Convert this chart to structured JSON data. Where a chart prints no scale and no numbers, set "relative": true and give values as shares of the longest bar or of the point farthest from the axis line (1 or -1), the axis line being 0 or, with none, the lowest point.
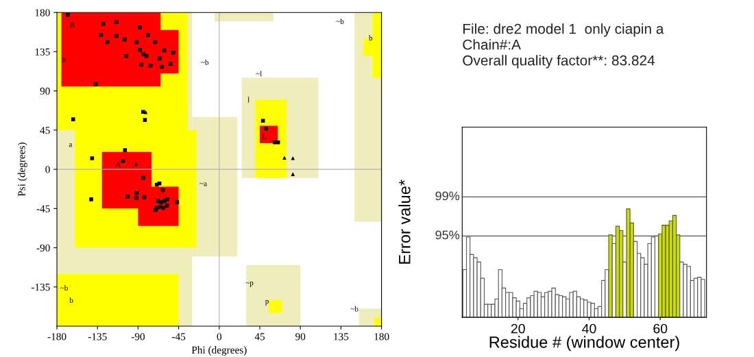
{
  "chart_data": [
    {
      "type": "scatter",
      "xlabel": "Phi (degrees)",
      "ylabel": "Psi (degrees)",
      "xlim": [
        -180,
        180
      ],
      "ylim": [
        -180,
        180
      ],
      "xticks": [
        -180,
        -135,
        -90,
        -45,
        0,
        45,
        90,
        135,
        180
      ],
      "yticks": [
        -135,
        -90,
        -45,
        0,
        45,
        90,
        135,
        180
      ],
      "grid": false,
      "legend": false,
      "ref_lines": [
        {
          "axis": "x",
          "value": 0,
          "color": "#b0b0b0"
        },
        {
          "axis": "y",
          "value": 0,
          "color": "#b0b0b0"
        }
      ],
      "series": [
        {
          "color": "#000000",
          "marker": "square",
          "x": [
            -168,
            -128.5,
            -114,
            -88,
            -131,
            -114,
            -124,
            -105,
            -91.5,
            -79,
            -71,
            -88,
            -84,
            -80.6,
            -103,
            -61,
            -51,
            -66,
            -86.4,
            -76,
            -63.5,
            -54,
            -137,
            -84.4,
            -82.4,
            -162,
            -141,
            -104.5,
            -106.6,
            48.5,
            52,
            61.5,
            65.3,
            -84,
            -142,
            -101.5,
            -91.5,
            -92,
            -83,
            -69.3,
            -66.3,
            -62.5,
            -57.5,
            -46.6,
            -68,
            -64.3,
            -60.5,
            -69.3,
            -65.5,
            -61.7,
            -58,
            -70.6
          ],
          "values": [
            177,
            167,
            169,
            163,
            154,
            153,
            146,
            149,
            146,
            154,
            146,
            137,
            132,
            130,
            130,
            136.5,
            134,
            127,
            120,
            119,
            117.6,
            121,
            97.7,
            66,
            56.6,
            57.4,
            12.6,
            22,
            9.4,
            55.8,
            46.6,
            31,
            31,
            -9.7,
            -34.4,
            -31.2,
            -27.3,
            -33,
            -32,
            -17.6,
            -16.3,
            -23.9,
            -34.4,
            -37.8,
            -36.4,
            -37.8,
            -36.4,
            -44.3,
            -43,
            -44.3,
            -41.7,
            -46.6
          ]
        },
        {
          "color": "#000000",
          "marker": "triangle",
          "x": [
            -81.5,
            -92,
            72.3,
            81.7,
            81.7
          ],
          "values": [
            65.5,
            6,
            13.3,
            12.8,
            -5.5
          ]
        }
      ],
      "annotations": [
        "B",
        "b",
        "A",
        "a",
        "~b",
        "~b",
        "b",
        "~l",
        "l",
        "L",
        "~a",
        "~b",
        "b",
        "~p",
        "p",
        "~b"
      ]
    },
    {
      "type": "bar",
      "xlabel": "Residue # (window center)",
      "ylabel": "Error value*",
      "relative": true,
      "xlim": [
        4.3,
        73
      ],
      "xticks": [
        20,
        40,
        60
      ],
      "x": [
        5,
        6,
        7,
        8,
        9,
        10,
        11,
        12,
        13,
        14,
        15,
        16,
        17,
        18,
        19,
        20,
        21,
        22,
        23,
        24,
        25,
        26,
        27,
        28,
        29,
        30,
        31,
        32,
        33,
        34,
        35,
        36,
        37,
        38,
        39,
        40,
        41,
        42,
        43,
        44,
        45,
        46,
        47,
        48,
        49,
        50,
        51,
        52,
        53,
        54,
        55,
        56,
        57,
        58,
        59,
        60,
        61,
        62,
        63,
        64,
        65,
        66,
        67,
        68,
        69,
        70,
        71,
        72
      ],
      "values": [
        0.44,
        0.74,
        0.58,
        0.55,
        0.51,
        0.36,
        0.12,
        0.12,
        0.12,
        0.17,
        0.44,
        0.27,
        0.23,
        0.23,
        0.18,
        0.15,
        0.08,
        0.13,
        0.18,
        0.2,
        0.24,
        0.23,
        0.19,
        0.23,
        0.24,
        0.27,
        0.21,
        0.2,
        0.19,
        0.17,
        0.23,
        0.24,
        0.19,
        0.17,
        0.16,
        0.14,
        0.13,
        0.08,
        0.1,
        0.34,
        0.44,
        0.76,
        0.68,
        0.84,
        0.8,
        0.51,
        1.0,
        0.87,
        0.7,
        0.59,
        0.55,
        0.49,
        0.68,
        0.74,
        0.75,
        0.77,
        0.85,
        0.85,
        0.89,
        0.94,
        0.76,
        0.51,
        0.49,
        0.47,
        0.34,
        0.36,
        0.37,
        0.35
      ],
      "colors": [
        "#ffffff",
        "#ffffff",
        "#ffffff",
        "#ffffff",
        "#ffffff",
        "#ffffff",
        "#ffffff",
        "#ffffff",
        "#ffffff",
        "#ffffff",
        "#ffffff",
        "#ffffff",
        "#ffffff",
        "#ffffff",
        "#ffffff",
        "#ffffff",
        "#ffffff",
        "#ffffff",
        "#ffffff",
        "#ffffff",
        "#ffffff",
        "#ffffff",
        "#ffffff",
        "#ffffff",
        "#ffffff",
        "#ffffff",
        "#ffffff",
        "#ffffff",
        "#ffffff",
        "#ffffff",
        "#ffffff",
        "#ffffff",
        "#ffffff",
        "#ffffff",
        "#ffffff",
        "#ffffff",
        "#ffffff",
        "#ffffff",
        "#ffffff",
        "#ffffff",
        "#ffffff",
        "#ccdd00",
        "#ffffff",
        "#ccdd00",
        "#ccdd00",
        "#ffffff",
        "#ccdd00",
        "#ccdd00",
        "#ffffff",
        "#ffffff",
        "#ffffff",
        "#ffffff",
        "#ffffff",
        "#ffffff",
        "#ffffff",
        "#ccdd00",
        "#ccdd00",
        "#ccdd00",
        "#ccdd00",
        "#ccdd00",
        "#ccdd00",
        "#ffffff",
        "#ffffff",
        "#ffffff",
        "#ffffff",
        "#ffffff",
        "#ffffff",
        "#ffffff"
      ],
      "ref_lines": [
        {
          "axis": "y",
          "value": 0.75
        },
        {
          "axis": "y",
          "value": 1.11
        }
      ],
      "grid": false,
      "legend": false,
      "annotations": [
        "File: dre2 model 1  only ciapin a",
        "Chain#:A",
        "Overall quality factor**: 83.824",
        "95%",
        "99%"
      ]
    }
  ]
}
